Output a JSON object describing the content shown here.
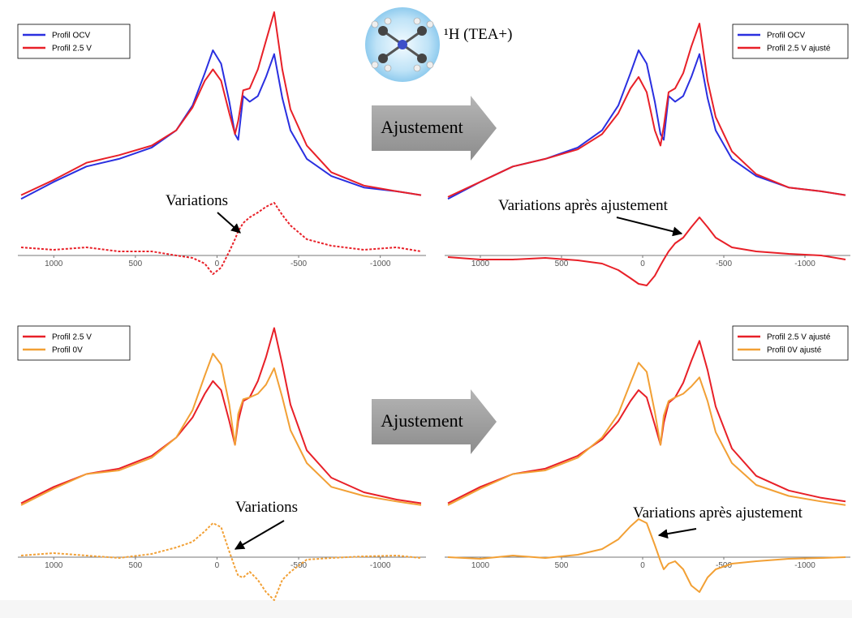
{
  "header": {
    "molecule_label": "¹H (TEA+)"
  },
  "arrows": [
    "Ajustement",
    "Ajustement"
  ],
  "chart_data": [
    {
      "type": "line",
      "legend": "upper left",
      "annotation": "Variations",
      "x": [
        1200,
        1000,
        800,
        600,
        400,
        250,
        150,
        75,
        25,
        -25,
        -75,
        -110,
        -130,
        -160,
        -200,
        -250,
        -300,
        -350,
        -400,
        -450,
        -550,
        -700,
        -900,
        -1100,
        -1250
      ],
      "xlim": [
        1220,
        -1280
      ],
      "xticks": [
        1000,
        500,
        0,
        -500,
        -1000
      ],
      "ylim": [
        0,
        100
      ],
      "y2lim": [
        -40,
        70
      ],
      "series": [
        {
          "name": "Profil OCV",
          "color": "#2a2fe0",
          "values": [
            2,
            11,
            19,
            23,
            29,
            38,
            51,
            68,
            80,
            73,
            53,
            36,
            33,
            56,
            53,
            56,
            66,
            78,
            55,
            38,
            23,
            14,
            8,
            6,
            4
          ]
        },
        {
          "name": "Profil 2.5 V",
          "color": "#e82028",
          "values": [
            4,
            12,
            21,
            25,
            30,
            38,
            50,
            64,
            70,
            64,
            47,
            36,
            43,
            59,
            60,
            70,
            85,
            100,
            70,
            49,
            30,
            16,
            9,
            6,
            4
          ]
        },
        {
          "color": "#e82028",
          "axis": "y2",
          "dashed": true,
          "values": [
            10,
            7,
            10,
            5,
            5,
            0,
            -3,
            -10,
            -23,
            -15,
            5,
            20,
            30,
            40,
            47,
            53,
            60,
            65,
            50,
            37,
            20,
            12,
            7,
            10,
            5
          ]
        }
      ]
    },
    {
      "type": "line",
      "legend": "upper right",
      "annotation": "Variations après ajustement",
      "x": [
        1200,
        1000,
        800,
        600,
        400,
        250,
        150,
        75,
        25,
        -25,
        -75,
        -110,
        -130,
        -160,
        -200,
        -250,
        -300,
        -350,
        -400,
        -450,
        -550,
        -700,
        -900,
        -1100,
        -1250
      ],
      "xlim": [
        1220,
        -1280
      ],
      "xticks": [
        1000,
        500,
        0,
        -500,
        -1000
      ],
      "ylim": [
        0,
        100
      ],
      "y2lim": [
        -40,
        70
      ],
      "series": [
        {
          "name": "Profil OCV",
          "color": "#2a2fe0",
          "values": [
            2,
            11,
            19,
            23,
            29,
            38,
            51,
            68,
            80,
            73,
            53,
            36,
            33,
            56,
            53,
            56,
            66,
            78,
            55,
            38,
            23,
            14,
            8,
            6,
            4
          ]
        },
        {
          "name": "Profil 2.5 V ajusté",
          "color": "#e82028",
          "values": [
            3,
            11,
            19,
            23,
            28,
            36,
            47,
            60,
            66,
            58,
            38,
            30,
            40,
            58,
            60,
            68,
            82,
            94,
            64,
            45,
            27,
            15,
            8,
            6,
            4
          ]
        },
        {
          "color": "#e82028",
          "axis": "y2",
          "dashed": false,
          "values": [
            -2,
            -5,
            -5,
            -3,
            -6,
            -10,
            -18,
            -28,
            -35,
            -37,
            -25,
            -12,
            -5,
            5,
            15,
            22,
            35,
            47,
            35,
            22,
            10,
            5,
            2,
            0,
            -5
          ]
        }
      ]
    },
    {
      "type": "line",
      "legend": "upper left",
      "annotation": "Variations",
      "x": [
        1200,
        1000,
        800,
        600,
        400,
        250,
        150,
        75,
        25,
        -25,
        -75,
        -110,
        -130,
        -160,
        -200,
        -250,
        -300,
        -350,
        -400,
        -450,
        -550,
        -700,
        -900,
        -1100,
        -1250
      ],
      "xlim": [
        1220,
        -1280
      ],
      "xticks": [
        1000,
        500,
        0,
        -500,
        -1000
      ],
      "ylim": [
        0,
        100
      ],
      "y2lim": [
        -60,
        60
      ],
      "series": [
        {
          "name": "Profil 2.5 V",
          "color": "#e82028",
          "values": [
            2,
            11,
            18,
            21,
            28,
            38,
            49,
            62,
            69,
            64,
            47,
            34,
            47,
            58,
            60,
            69,
            82,
            98,
            78,
            56,
            31,
            16,
            8,
            4,
            2
          ]
        },
        {
          "name": "Profil 0V",
          "color": "#f2a035",
          "values": [
            1,
            10,
            18,
            20,
            27,
            38,
            53,
            72,
            84,
            78,
            56,
            34,
            51,
            59,
            60,
            62,
            67,
            76,
            60,
            42,
            24,
            11,
            6,
            3,
            1
          ]
        },
        {
          "color": "#f2a035",
          "axis": "y2",
          "dashed": true,
          "values": [
            2,
            5,
            2,
            -1,
            4,
            12,
            19,
            32,
            42,
            37,
            7,
            -13,
            -23,
            -25,
            -18,
            -28,
            -43,
            -53,
            -28,
            -18,
            -3,
            -1,
            1,
            2,
            -1
          ]
        }
      ]
    },
    {
      "type": "line",
      "legend": "upper right",
      "annotation": "Variations après ajustement",
      "x": [
        1200,
        1000,
        800,
        600,
        400,
        250,
        150,
        75,
        25,
        -25,
        -75,
        -110,
        -130,
        -160,
        -200,
        -250,
        -300,
        -350,
        -400,
        -450,
        -550,
        -700,
        -900,
        -1100,
        -1250
      ],
      "xlim": [
        1220,
        -1280
      ],
      "xticks": [
        1000,
        500,
        0,
        -500,
        -1000
      ],
      "ylim": [
        0,
        100
      ],
      "y2lim": [
        -60,
        60
      ],
      "series": [
        {
          "name": "Profil 2.5 V ajusté",
          "color": "#e82028",
          "values": [
            2,
            11,
            18,
            21,
            28,
            37,
            47,
            58,
            64,
            60,
            45,
            34,
            46,
            57,
            60,
            68,
            80,
            91,
            75,
            55,
            32,
            17,
            9,
            5,
            3
          ]
        },
        {
          "name": "Profil 0V ajusté",
          "color": "#f2a035",
          "values": [
            1,
            10,
            18,
            20,
            27,
            38,
            51,
            68,
            79,
            74,
            52,
            34,
            50,
            58,
            60,
            62,
            66,
            71,
            58,
            41,
            24,
            12,
            6,
            3,
            1
          ]
        },
        {
          "color": "#f2a035",
          "axis": "y2",
          "dashed": false,
          "values": [
            0,
            -2,
            2,
            -1,
            3,
            10,
            22,
            38,
            47,
            42,
            15,
            -5,
            -15,
            -8,
            -5,
            -15,
            -35,
            -43,
            -25,
            -15,
            -8,
            -5,
            -2,
            -1,
            0
          ]
        }
      ]
    }
  ]
}
